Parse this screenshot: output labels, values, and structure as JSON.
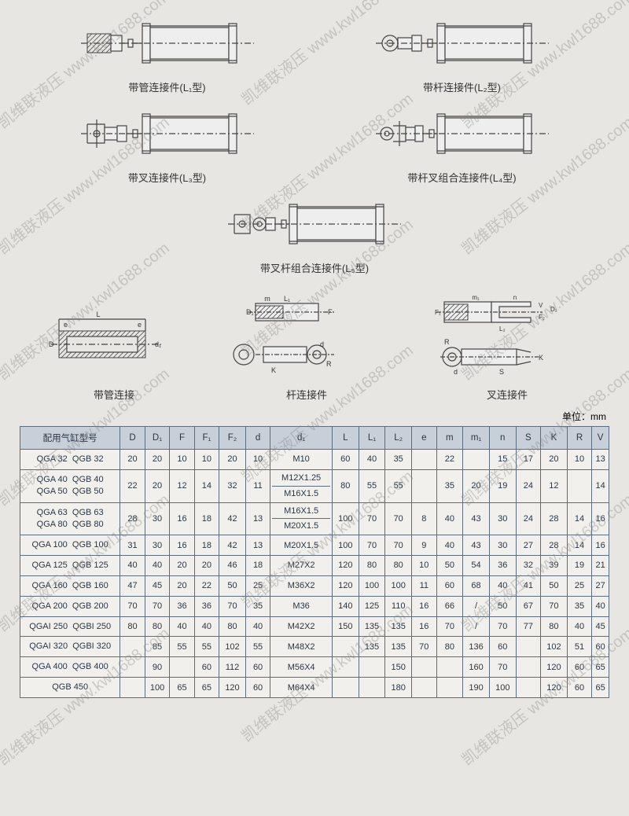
{
  "diagram_labels": {
    "l1": "带管连接件(L₁型)",
    "l2": "带杆连接件(L₂型)",
    "l3": "带叉连接件(L₃型)",
    "l4": "带杆叉组合连接件(L₄型)",
    "l5": "带叉杆组合连接件(L₅型)",
    "detail1": "带管连接",
    "detail2": "杆连接件",
    "detail3": "叉连接件"
  },
  "unit_text": "单位：mm",
  "watermark_text": "凯维联液压  www.kwl1688.com",
  "table": {
    "headers": [
      "配用气缸型号",
      "D",
      "D₁",
      "F",
      "F₁",
      "F₂",
      "d",
      "d₁",
      "L",
      "L₁",
      "L₂",
      "e",
      "m",
      "m₁",
      "n",
      "S",
      "K",
      "R",
      "V"
    ],
    "col_widths_pct": [
      17,
      4.2,
      4.2,
      4.2,
      4.2,
      4.5,
      4.2,
      10.5,
      4.5,
      4.5,
      4.5,
      4.2,
      4.5,
      4.5,
      4.5,
      4.2,
      4.5,
      4.2,
      4.2
    ],
    "header_bg": "#c7d0d9",
    "border_color": "#5d6c7e",
    "body_bg": "#f2f0ec",
    "font_size": 11,
    "rows": [
      {
        "model": "QGA 32   QGB 32",
        "D": "20",
        "D1": "20",
        "F": "10",
        "F1": "10",
        "F2": "20",
        "d": "10",
        "d1": "M10",
        "L": "60",
        "L1": "40",
        "L2": "35",
        "e": "",
        "m": "22",
        "m1": "",
        "n": "15",
        "S": "17",
        "K": "20",
        "R": "10",
        "V": "13"
      },
      {
        "model": "QGA 40   QGB 40\nQGA 50   QGB 50",
        "D": "22",
        "D1": "20",
        "F": "12",
        "F1": "14",
        "F2": "32",
        "d": "11",
        "d1": "M12X1.25\nM16X1.5",
        "L": "80",
        "L1": "55",
        "L2": "55",
        "e": "",
        "m": "35",
        "m1": "20",
        "n": "19",
        "S": "24",
        "K": "12",
        "R": "",
        "V": "14"
      },
      {
        "model": "QGA 63   QGB 63\nQGA 80   QGB 80",
        "D": "28",
        "D1": "30",
        "F": "16",
        "F1": "18",
        "F2": "42",
        "d": "13",
        "d1": "M16X1.5\nM20X1.5",
        "L": "100",
        "L1": "70",
        "L2": "70",
        "e": "8",
        "m": "40",
        "m1": "43",
        "n": "30",
        "S": "24",
        "K": "28",
        "R": "14",
        "V": "16"
      },
      {
        "model": "QGA 100   QGB 100",
        "D": "31",
        "D1": "30",
        "F": "16",
        "F1": "18",
        "F2": "42",
        "d": "13",
        "d1": "M20X1.5",
        "L": "100",
        "L1": "70",
        "L2": "70",
        "e": "9",
        "m": "40",
        "m1": "43",
        "n": "30",
        "S": "27",
        "K": "28",
        "R": "14",
        "V": "16"
      },
      {
        "model": "QGA 125   QGB 125",
        "D": "40",
        "D1": "40",
        "F": "20",
        "F1": "20",
        "F2": "46",
        "d": "18",
        "d1": "M27X2",
        "L": "120",
        "L1": "80",
        "L2": "80",
        "e": "10",
        "m": "50",
        "m1": "54",
        "n": "36",
        "S": "32",
        "K": "39",
        "R": "19",
        "V": "21"
      },
      {
        "model": "QGA 160   QGB 160",
        "D": "47",
        "D1": "45",
        "F": "20",
        "F1": "22",
        "F2": "50",
        "d": "25",
        "d1": "M36X2",
        "L": "120",
        "L1": "100",
        "L2": "100",
        "e": "11",
        "m": "60",
        "m1": "68",
        "n": "40",
        "S": "41",
        "K": "50",
        "R": "25",
        "V": "27"
      },
      {
        "model": "QGA 200   QGB 200",
        "D": "70",
        "D1": "70",
        "F": "36",
        "F1": "36",
        "F2": "70",
        "d": "35",
        "d1": "M36",
        "L": "140",
        "L1": "125",
        "L2": "110",
        "e": "16",
        "m": "66",
        "m1": "/",
        "n": "50",
        "S": "67",
        "K": "70",
        "R": "35",
        "V": "40"
      },
      {
        "model": "QGAI 250  QGBI 250",
        "D": "80",
        "D1": "80",
        "F": "40",
        "F1": "40",
        "F2": "80",
        "d": "40",
        "d1": "M42X2",
        "L": "150",
        "L1": "135",
        "L2": "135",
        "e": "16",
        "m": "70",
        "m1": "/",
        "n": "70",
        "S": "77",
        "K": "80",
        "R": "40",
        "V": "45"
      },
      {
        "model": "QGAI 320  QGBI 320",
        "D": "",
        "D1": "85",
        "F": "55",
        "F1": "55",
        "F2": "102",
        "d": "55",
        "d1": "M48X2",
        "L": "",
        "L1": "135",
        "L2": "135",
        "e": "70",
        "m": "80",
        "m1": "136",
        "n": "60",
        "S": "",
        "K": "102",
        "R": "51",
        "V": "60"
      },
      {
        "model": "QGA 400   QGB 400",
        "D": "",
        "D1": "90",
        "F": "",
        "F1": "60",
        "F2": "112",
        "d": "60",
        "d1": "M56X4",
        "L": "",
        "L1": "",
        "L2": "150",
        "e": "",
        "m": "",
        "m1": "160",
        "n": "70",
        "S": "",
        "K": "120",
        "R": "60",
        "V": "65"
      },
      {
        "model": "QGB 450",
        "D": "",
        "D1": "100",
        "F": "65",
        "F1": "65",
        "F2": "120",
        "d": "60",
        "d1": "M64X4",
        "L": "",
        "L1": "",
        "L2": "180",
        "e": "",
        "m": "",
        "m1": "190",
        "n": "100",
        "S": "",
        "K": "120",
        "R": "60",
        "V": "65"
      }
    ]
  }
}
